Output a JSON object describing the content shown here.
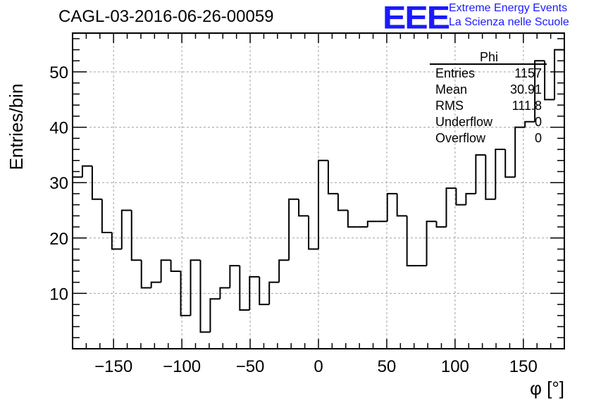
{
  "header": {
    "title": "CAGL-03-2016-06-26-00059",
    "logo_text": "EEE",
    "logo_line1": "Extreme Energy Events",
    "logo_line2": "La Scienza nelle Scuole"
  },
  "colors": {
    "logo": "#1a1aff",
    "line": "#000000",
    "grid": "#a0a0a0"
  },
  "stats": {
    "name": "Phi",
    "rows": [
      {
        "label": "Entries",
        "value": "1157"
      },
      {
        "label": "Mean",
        "value": "30.91"
      },
      {
        "label": "RMS",
        "value": "111.8"
      },
      {
        "label": "Underflow",
        "value": "0"
      },
      {
        "label": "Overflow",
        "value": "0"
      }
    ]
  },
  "chart_data": {
    "type": "bar",
    "style": "step-histogram",
    "title": "CAGL-03-2016-06-26-00059",
    "xlabel": "φ [°]",
    "ylabel": "Entries/bin",
    "xlim": [
      -180,
      180
    ],
    "ylim": [
      0,
      57
    ],
    "bin_edges_start": -180,
    "bin_width": 7.2,
    "x_ticks": [
      -150,
      -100,
      -50,
      0,
      50,
      100,
      150
    ],
    "x_tick_labels": [
      "−150",
      "−100",
      "−50",
      "0",
      "50",
      "100",
      "150"
    ],
    "y_ticks": [
      10,
      20,
      30,
      40,
      50
    ],
    "y_tick_labels": [
      "10",
      "20",
      "30",
      "40",
      "50"
    ],
    "grid": true,
    "legend": "none",
    "values": [
      31,
      33,
      27,
      21,
      18,
      25,
      16,
      11,
      12,
      16,
      14,
      6,
      16,
      3,
      9,
      11,
      15,
      7,
      13,
      8,
      12,
      16,
      27,
      24,
      18,
      34,
      28,
      25,
      22,
      22,
      23,
      23,
      28,
      24,
      15,
      15,
      23,
      22,
      29,
      26,
      28,
      35,
      27,
      36,
      31,
      40,
      41,
      52,
      45,
      54
    ]
  }
}
